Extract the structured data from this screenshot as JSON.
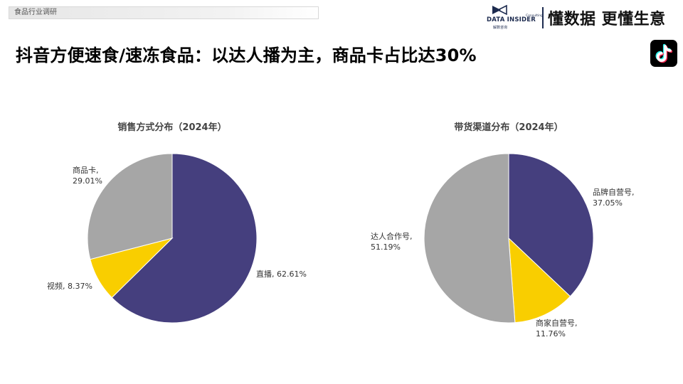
{
  "header": {
    "section_tag": "食品行业调研",
    "brand_name": "DATA INSIDER",
    "brand_cn": "解数咨询",
    "brand_consulting": "Consulting",
    "slogan": "懂数据 更懂生意",
    "platform_icon": "tiktok-icon"
  },
  "page_title": "抖音方便速食/速冻食品：以达人播为主，商品卡占比达30%",
  "colors": {
    "purple": "#453F7E",
    "yellow": "#F9CE00",
    "gray": "#A6A6A6"
  },
  "chart_data": [
    {
      "type": "pie",
      "title": "销售方式分布（2024年）",
      "slices": [
        {
          "name": "直播",
          "value": 62.61,
          "value_label": "62.61%",
          "color": "#453F7E"
        },
        {
          "name": "视频",
          "value": 8.37,
          "value_label": "8.37%",
          "color": "#F9CE00"
        },
        {
          "name": "商品卡",
          "value": 29.01,
          "value_label": "29.01%",
          "color": "#A6A6A6"
        }
      ]
    },
    {
      "type": "pie",
      "title": "带货渠道分布（2024年）",
      "slices": [
        {
          "name": "品牌自营号",
          "value": 37.05,
          "value_label": "37.05%",
          "color": "#453F7E"
        },
        {
          "name": "商家自营号",
          "value": 11.76,
          "value_label": "11.76%",
          "color": "#F9CE00"
        },
        {
          "name": "达人合作号",
          "value": 51.19,
          "value_label": "51.19%",
          "color": "#A6A6A6"
        }
      ]
    }
  ]
}
